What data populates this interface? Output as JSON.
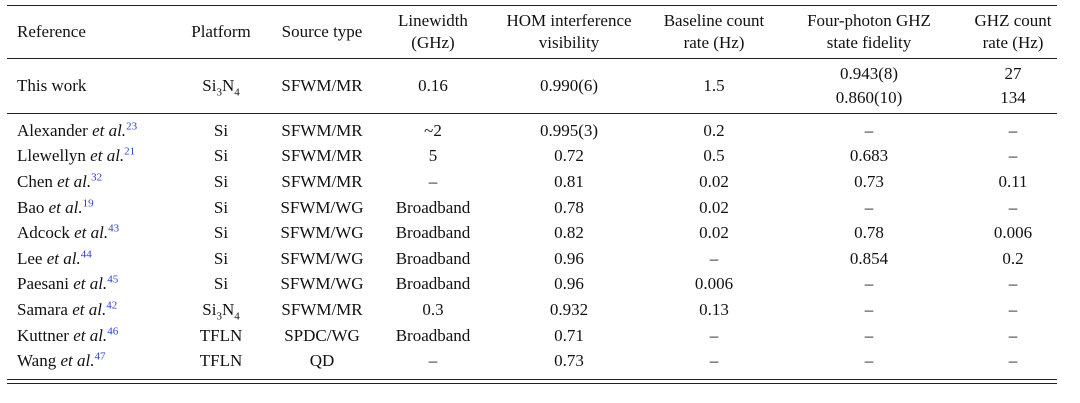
{
  "headers": [
    [
      "Reference"
    ],
    [
      "Platform"
    ],
    [
      "Source type"
    ],
    [
      "Linewidth",
      "(GHz)"
    ],
    [
      "HOM interference",
      "visibility"
    ],
    [
      "Baseline count",
      "rate (Hz)"
    ],
    [
      "Four-photon GHZ",
      "state fidelity"
    ],
    [
      "GHZ count",
      "rate (Hz)"
    ]
  ],
  "this_work": {
    "reference": "This work",
    "platform": {
      "base": "Si",
      "sub1": "3",
      "mid": "N",
      "sub2": "4"
    },
    "source": "SFWM/MR",
    "linewidth": "0.16",
    "hom": "0.990(6)",
    "baseline": "1.5",
    "fidelity": [
      "0.943(8)",
      "0.860(10)"
    ],
    "ghz_rate": [
      "27",
      "134"
    ]
  },
  "rows": [
    {
      "name": "Alexander",
      "etal": "et al.",
      "ref": "23",
      "platform": "Si",
      "source": "SFWM/MR",
      "linewidth": "~2",
      "hom": "0.995(3)",
      "baseline": "0.2",
      "fidelity": "–",
      "ghz_rate": "–"
    },
    {
      "name": "Llewellyn",
      "etal": "et al.",
      "ref": "21",
      "platform": "Si",
      "source": "SFWM/MR",
      "linewidth": "5",
      "hom": "0.72",
      "baseline": "0.5",
      "fidelity": "0.683",
      "ghz_rate": "–"
    },
    {
      "name": "Chen",
      "etal": "et al.",
      "ref": "32",
      "platform": "Si",
      "source": "SFWM/MR",
      "linewidth": "–",
      "hom": "0.81",
      "baseline": "0.02",
      "fidelity": "0.73",
      "ghz_rate": "0.11"
    },
    {
      "name": "Bao",
      "etal": "et al.",
      "ref": "19",
      "platform": "Si",
      "source": "SFWM/WG",
      "linewidth": "Broadband",
      "hom": "0.78",
      "baseline": "0.02",
      "fidelity": "–",
      "ghz_rate": "–"
    },
    {
      "name": "Adcock",
      "etal": "et al.",
      "ref": "43",
      "platform": "Si",
      "source": "SFWM/WG",
      "linewidth": "Broadband",
      "hom": "0.82",
      "baseline": "0.02",
      "fidelity": "0.78",
      "ghz_rate": "0.006"
    },
    {
      "name": "Lee",
      "etal": "et al.",
      "ref": "44",
      "platform": "Si",
      "source": "SFWM/WG",
      "linewidth": "Broadband",
      "hom": "0.96",
      "baseline": "–",
      "fidelity": "0.854",
      "ghz_rate": "0.2"
    },
    {
      "name": "Paesani",
      "etal": "et al.",
      "ref": "45",
      "platform": "Si",
      "source": "SFWM/WG",
      "linewidth": "Broadband",
      "hom": "0.96",
      "baseline": "0.006",
      "fidelity": "–",
      "ghz_rate": "–"
    },
    {
      "name": "Samara",
      "etal": "et al.",
      "ref": "42",
      "platform": "Si3N4",
      "source": "SFWM/MR",
      "linewidth": "0.3",
      "hom": "0.932",
      "baseline": "0.13",
      "fidelity": "–",
      "ghz_rate": "–"
    },
    {
      "name": "Kuttner",
      "etal": "et al.",
      "ref": "46",
      "platform": "TFLN",
      "source": "SPDC/WG",
      "linewidth": "Broadband",
      "hom": "0.71",
      "baseline": "–",
      "fidelity": "–",
      "ghz_rate": "–"
    },
    {
      "name": "Wang",
      "etal": "et al.",
      "ref": "47",
      "platform": "TFLN",
      "source": "QD",
      "linewidth": "–",
      "hom": "0.73",
      "baseline": "–",
      "fidelity": "–",
      "ghz_rate": "–"
    }
  ]
}
